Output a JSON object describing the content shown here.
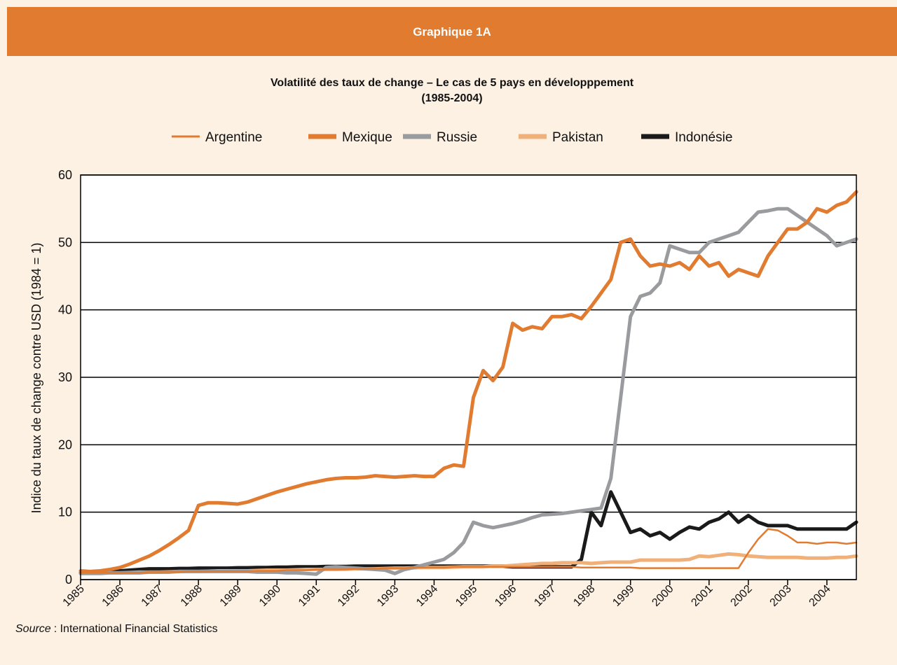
{
  "header": "Graphique 1A",
  "source_label": "Source",
  "source_text": ": International Financial Statistics",
  "chart_data": {
    "type": "line",
    "title": "Volatilité des taux de change – Le cas de 5 pays en développpement",
    "subtitle": "(1985-2004)",
    "ylabel": "Indice du taux de change contre USD (1984 = 1)",
    "xlim": [
      1985,
      2004.75
    ],
    "xticks": [
      1985,
      1986,
      1987,
      1988,
      1989,
      1990,
      1991,
      1992,
      1993,
      1994,
      1995,
      1996,
      1997,
      1998,
      1999,
      2000,
      2001,
      2002,
      2003,
      2004
    ],
    "ylim": [
      0,
      60
    ],
    "yticks": [
      0,
      10,
      20,
      30,
      40,
      50,
      60
    ],
    "grid": true,
    "x": [
      1985,
      1985.25,
      1985.5,
      1985.75,
      1986,
      1986.25,
      1986.5,
      1986.75,
      1987,
      1987.25,
      1987.5,
      1987.75,
      1988,
      1988.25,
      1988.5,
      1988.75,
      1989,
      1989.25,
      1989.5,
      1989.75,
      1990,
      1990.25,
      1990.5,
      1990.75,
      1991,
      1991.25,
      1991.5,
      1991.75,
      1992,
      1992.25,
      1992.5,
      1992.75,
      1993,
      1993.25,
      1993.5,
      1993.75,
      1994,
      1994.25,
      1994.5,
      1994.75,
      1995,
      1995.25,
      1995.5,
      1995.75,
      1996,
      1996.25,
      1996.5,
      1996.75,
      1997,
      1997.25,
      1997.5,
      1997.75,
      1998,
      1998.25,
      1998.5,
      1998.75,
      1999,
      1999.25,
      1999.5,
      1999.75,
      2000,
      2000.25,
      2000.5,
      2000.75,
      2001,
      2001.25,
      2001.5,
      2001.75,
      2002,
      2002.25,
      2002.5,
      2002.75,
      2003,
      2003.25,
      2003.5,
      2003.75,
      2004,
      2004.25,
      2004.5,
      2004.75
    ],
    "series": [
      {
        "name": "Argentine",
        "color": "#e07b30",
        "width": 2.5,
        "values": [
          1,
          1,
          1,
          1,
          1,
          1,
          1,
          1.1,
          1.1,
          1.1,
          1.1,
          1.2,
          1.2,
          1.2,
          1.2,
          1.2,
          1.2,
          1.2,
          1.3,
          1.3,
          1.3,
          1.4,
          1.4,
          1.4,
          1.5,
          1.5,
          1.5,
          1.5,
          1.6,
          1.6,
          1.6,
          1.7,
          1.7,
          1.7,
          1.8,
          1.8,
          1.8,
          1.8,
          1.9,
          1.9,
          1.9,
          1.9,
          1.9,
          1.9,
          1.9,
          1.9,
          1.9,
          1.9,
          1.9,
          1.9,
          1.9,
          1.8,
          1.8,
          1.8,
          1.8,
          1.8,
          1.8,
          1.7,
          1.7,
          1.7,
          1.7,
          1.7,
          1.7,
          1.7,
          1.7,
          1.7,
          1.7,
          1.7,
          4,
          6,
          7.5,
          7.3,
          6.5,
          5.5,
          5.5,
          5.3,
          5.5,
          5.5,
          5.3,
          5.5
        ]
      },
      {
        "name": "Mexique",
        "color": "#e07b30",
        "width": 5,
        "values": [
          1.3,
          1.2,
          1.3,
          1.5,
          1.8,
          2.3,
          2.9,
          3.5,
          4.3,
          5.2,
          6.2,
          7.3,
          11,
          11.4,
          11.4,
          11.3,
          11.2,
          11.5,
          12,
          12.5,
          13,
          13.4,
          13.8,
          14.2,
          14.5,
          14.8,
          15,
          15.1,
          15.1,
          15.2,
          15.4,
          15.3,
          15.2,
          15.3,
          15.4,
          15.3,
          15.3,
          16.5,
          17,
          16.8,
          27,
          31,
          29.5,
          31.5,
          38,
          37,
          37.5,
          37.2,
          39,
          39,
          39.3,
          38.7,
          40.5,
          42.5,
          44.5,
          50,
          50.5,
          48,
          46.5,
          46.8,
          46.5,
          47,
          46,
          48,
          46.5,
          47,
          45,
          46,
          45.5,
          45,
          48,
          50,
          52,
          52,
          53,
          55,
          54.5,
          55.5,
          56,
          57.5
        ]
      },
      {
        "name": "Russie",
        "color": "#9a9b9e",
        "width": 5,
        "values": [
          0.9,
          0.9,
          0.9,
          1,
          1,
          1,
          1,
          1.1,
          1.1,
          1.1,
          1.2,
          1.2,
          1.2,
          1.2,
          1.2,
          1.2,
          1.2,
          1.2,
          1.1,
          1.1,
          1.1,
          1,
          1,
          0.9,
          0.8,
          1.8,
          1.9,
          1.8,
          1.7,
          1.6,
          1.5,
          1.4,
          0.9,
          1.5,
          1.8,
          2.2,
          2.6,
          3,
          4,
          5.5,
          8.5,
          8,
          7.7,
          8,
          8.3,
          8.7,
          9.2,
          9.6,
          9.7,
          9.8,
          10,
          10.2,
          10.4,
          10.6,
          15,
          27,
          39,
          42,
          42.5,
          44,
          49.5,
          49,
          48.5,
          48.5,
          50,
          50.5,
          51,
          51.5,
          53,
          54.5,
          54.7,
          55,
          55,
          54,
          53,
          52,
          51,
          49.5,
          50,
          50.5
        ]
      },
      {
        "name": "Pakistan",
        "color": "#f0b07a",
        "width": 5,
        "values": [
          0.9,
          0.95,
          1,
          1,
          1,
          1.05,
          1.1,
          1.1,
          1.1,
          1.15,
          1.2,
          1.2,
          1.2,
          1.25,
          1.3,
          1.3,
          1.3,
          1.3,
          1.35,
          1.4,
          1.4,
          1.4,
          1.45,
          1.5,
          1.5,
          1.5,
          1.5,
          1.55,
          1.6,
          1.6,
          1.6,
          1.65,
          1.7,
          1.7,
          1.75,
          1.8,
          1.8,
          1.8,
          1.85,
          1.9,
          1.9,
          1.9,
          2,
          2,
          2.1,
          2.2,
          2.3,
          2.4,
          2.4,
          2.5,
          2.5,
          2.5,
          2.4,
          2.5,
          2.6,
          2.6,
          2.6,
          2.9,
          2.9,
          2.9,
          2.9,
          2.9,
          3,
          3.5,
          3.4,
          3.6,
          3.8,
          3.7,
          3.5,
          3.4,
          3.3,
          3.3,
          3.3,
          3.3,
          3.2,
          3.2,
          3.2,
          3.3,
          3.3,
          3.5
        ]
      },
      {
        "name": "Indonésie",
        "color": "#1a1a1a",
        "width": 5,
        "values": [
          1,
          1.05,
          1.1,
          1.2,
          1.3,
          1.4,
          1.5,
          1.6,
          1.6,
          1.6,
          1.65,
          1.65,
          1.7,
          1.7,
          1.7,
          1.7,
          1.75,
          1.75,
          1.8,
          1.8,
          1.85,
          1.85,
          1.9,
          1.9,
          1.9,
          1.95,
          1.95,
          1.95,
          2,
          2,
          2,
          2,
          2,
          2,
          2,
          2,
          2,
          2,
          2,
          2,
          2,
          2,
          2,
          2,
          1.9,
          1.9,
          1.9,
          1.9,
          1.9,
          1.9,
          1.9,
          3,
          10,
          8,
          13,
          10,
          7,
          7.5,
          6.5,
          7,
          6,
          7,
          7.8,
          7.5,
          8.5,
          9,
          10,
          8.5,
          9.5,
          8.5,
          8,
          8,
          8,
          7.5,
          7.5,
          7.5,
          7.5,
          7.5,
          7.5,
          8.5
        ]
      }
    ]
  }
}
